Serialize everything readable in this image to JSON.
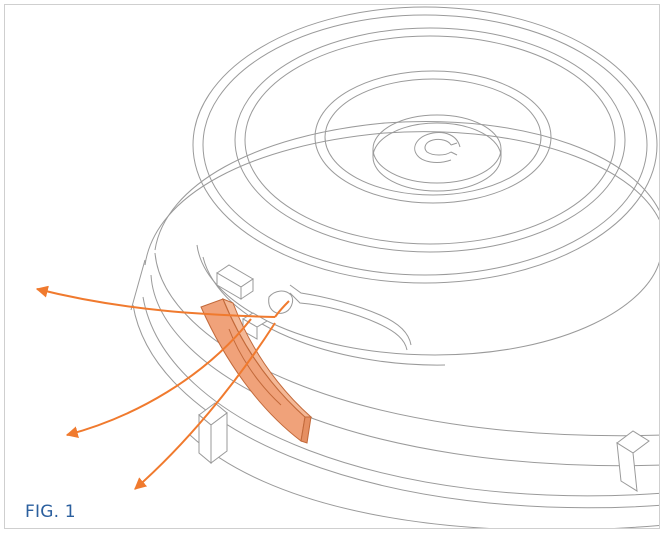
{
  "figure": {
    "label": "FIG. 1"
  },
  "colors": {
    "line": "#9a9a9a",
    "accent": "#f07a2e",
    "part_fill": "#f0a27a",
    "part_stroke": "#c2693a",
    "label": "#2b5f9e"
  }
}
